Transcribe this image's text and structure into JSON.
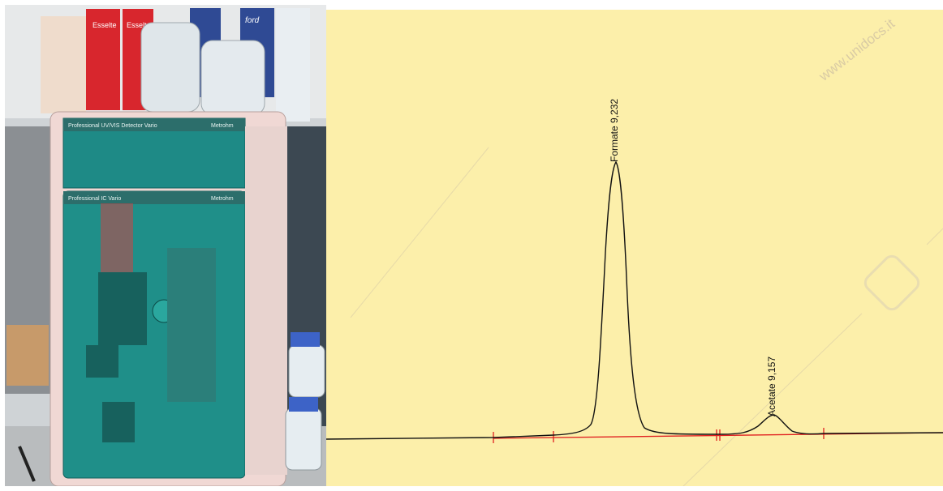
{
  "photo": {
    "panels": {
      "detector_label": "Professional UV/VIS Detector Vario",
      "ic_label": "Professional IC Vario",
      "brand": "Metrohm"
    },
    "binders": [
      "Esselte",
      "Esselte",
      "ford"
    ]
  },
  "chromatogram": {
    "background": "#fcefaa",
    "trace_color": "#111111",
    "baseline_color": "#e02020",
    "watermark": "www.unidocs.it",
    "peaks": [
      {
        "name": "Formate",
        "value": "9,232",
        "label": "Formate 9,232"
      },
      {
        "name": "Acetate",
        "value": "9,157",
        "label": "Acetate 9,157"
      }
    ]
  }
}
